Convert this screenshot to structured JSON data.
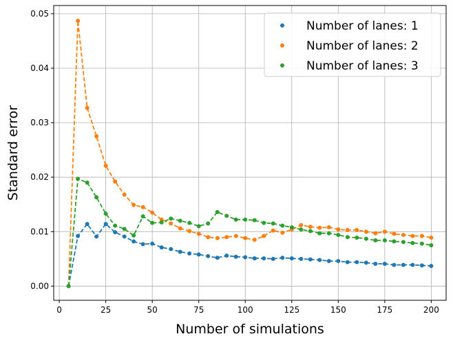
{
  "chart_data": {
    "type": "line",
    "title": "",
    "xlabel": "Number of simulations",
    "ylabel": "Standard error",
    "xlim": [
      -3,
      208
    ],
    "ylim": [
      -0.0026,
      0.0515
    ],
    "grid": true,
    "legend_position": "top-right",
    "x_ticks": [
      0,
      25,
      50,
      75,
      100,
      125,
      150,
      175,
      200
    ],
    "y_ticks": [
      0.0,
      0.01,
      0.02,
      0.03,
      0.04,
      0.05
    ],
    "y_tick_labels": [
      "0.00",
      "0.01",
      "0.02",
      "0.03",
      "0.04",
      "0.05"
    ],
    "x": [
      5,
      10,
      15,
      20,
      25,
      30,
      35,
      40,
      45,
      50,
      55,
      60,
      65,
      70,
      75,
      80,
      85,
      90,
      95,
      100,
      105,
      110,
      115,
      120,
      125,
      130,
      135,
      140,
      145,
      150,
      155,
      160,
      165,
      170,
      175,
      180,
      185,
      190,
      195,
      200
    ],
    "series": [
      {
        "name": "Number of lanes: 1",
        "color": "#1f77b4",
        "values": [
          0.0,
          0.0092,
          0.0114,
          0.0091,
          0.0114,
          0.0099,
          0.0091,
          0.0082,
          0.0077,
          0.0078,
          0.0071,
          0.0068,
          0.0063,
          0.006,
          0.0058,
          0.0055,
          0.0052,
          0.0056,
          0.0054,
          0.0053,
          0.0051,
          0.0051,
          0.005,
          0.0052,
          0.0051,
          0.005,
          0.0049,
          0.0048,
          0.0046,
          0.0046,
          0.0044,
          0.0044,
          0.0043,
          0.0041,
          0.0041,
          0.0039,
          0.0039,
          0.0039,
          0.0038,
          0.0037
        ]
      },
      {
        "name": "Number of lanes: 2",
        "color": "#ff7f0e",
        "values": [
          0.0,
          0.0487,
          0.0327,
          0.0275,
          0.0221,
          0.0192,
          0.0168,
          0.0149,
          0.0145,
          0.0135,
          0.0122,
          0.0115,
          0.0106,
          0.0101,
          0.0096,
          0.009,
          0.0088,
          0.009,
          0.0092,
          0.0088,
          0.0085,
          0.0092,
          0.0102,
          0.0098,
          0.0104,
          0.0112,
          0.0109,
          0.0107,
          0.0108,
          0.0104,
          0.0103,
          0.0103,
          0.01,
          0.0097,
          0.01,
          0.0096,
          0.0094,
          0.0092,
          0.0092,
          0.0089
        ]
      },
      {
        "name": "Number of lanes: 3",
        "color": "#2ca02c",
        "values": [
          0.0,
          0.0197,
          0.019,
          0.0163,
          0.0133,
          0.0111,
          0.0105,
          0.0093,
          0.0128,
          0.0116,
          0.0117,
          0.0124,
          0.012,
          0.0116,
          0.011,
          0.0115,
          0.0136,
          0.0129,
          0.0122,
          0.0122,
          0.0121,
          0.0116,
          0.0115,
          0.0111,
          0.0108,
          0.0104,
          0.0101,
          0.0097,
          0.0097,
          0.0094,
          0.009,
          0.0089,
          0.0087,
          0.0084,
          0.0084,
          0.0082,
          0.0081,
          0.0079,
          0.0078,
          0.0075
        ]
      }
    ]
  }
}
